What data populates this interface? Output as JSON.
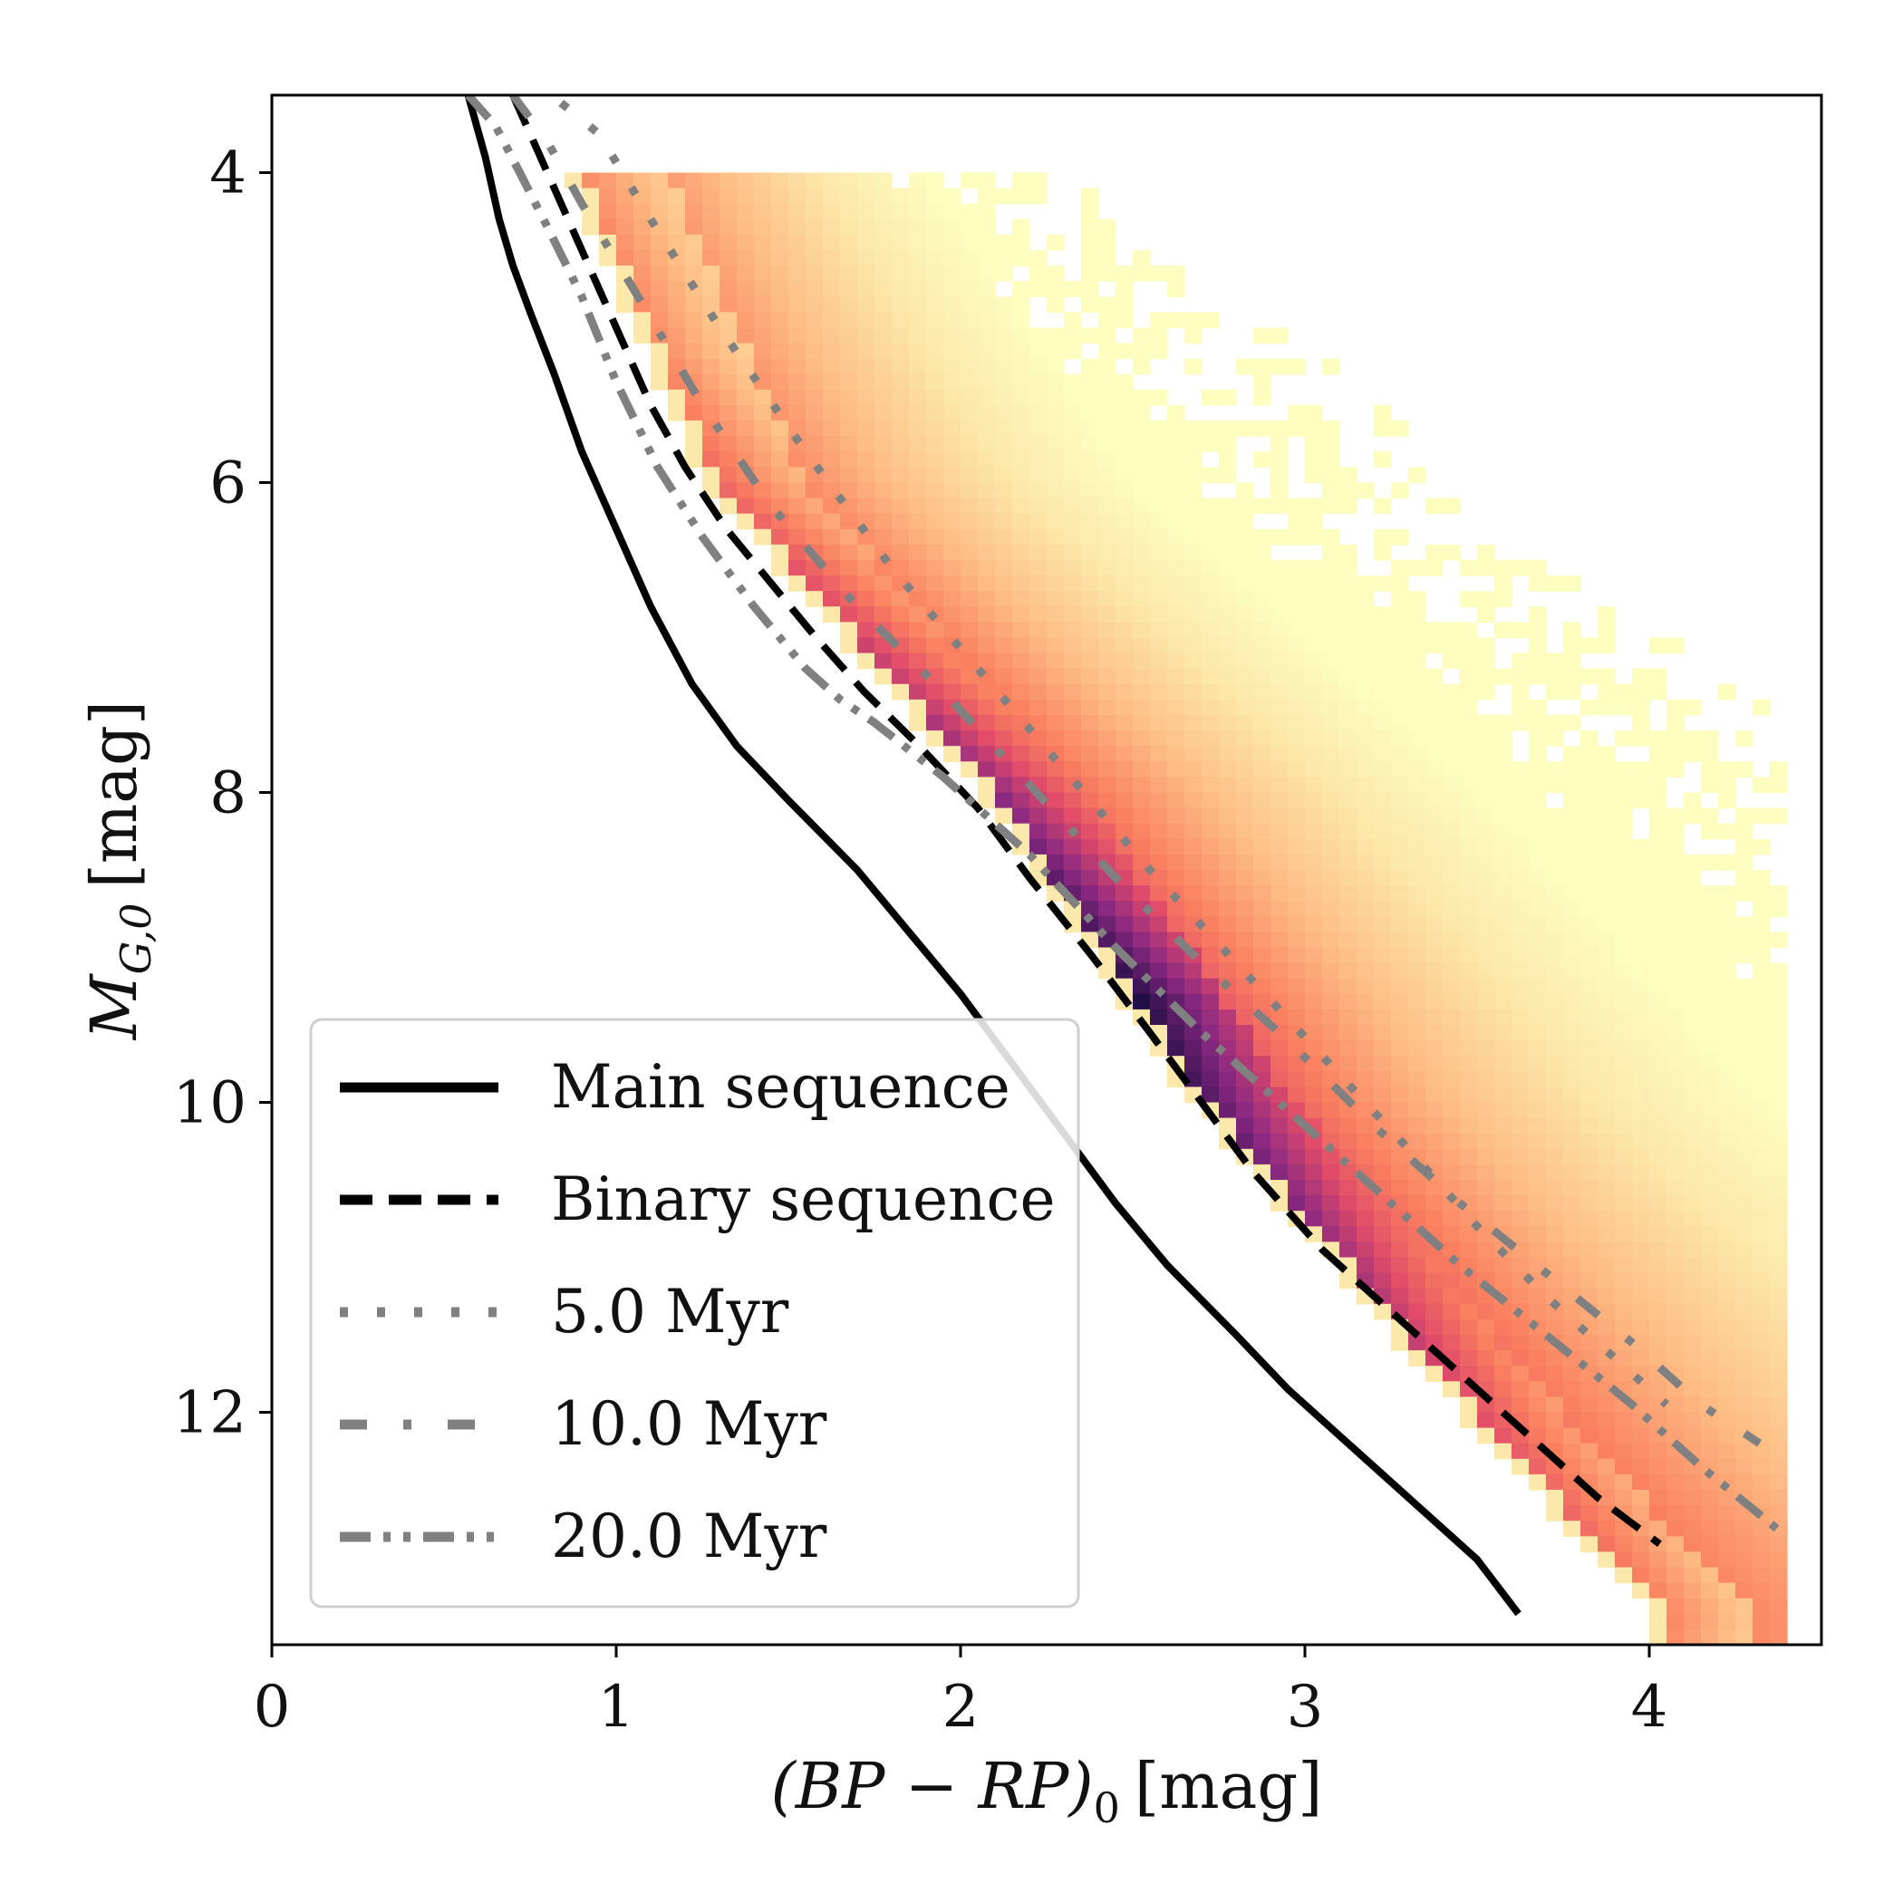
{
  "chart_data": {
    "type": "heatmap",
    "title": "",
    "xlabel": "(BP − RP)₀ [mag]",
    "ylabel": "M_G,0 [mag]",
    "xlabel_parts": {
      "main": "(BP − RP)",
      "sub": "0",
      "unit": "[mag]"
    },
    "ylabel_parts": {
      "main": "M",
      "sub": "G,0",
      "unit": "[mag]"
    },
    "xlim": [
      0,
      4.5
    ],
    "ylim": [
      13.5,
      3.5
    ],
    "y_inverted": true,
    "xticks": [
      0,
      1,
      2,
      3,
      4
    ],
    "xtick_labels": [
      "0",
      "1",
      "2",
      "3",
      "4"
    ],
    "yticks": [
      4,
      6,
      8,
      10,
      12
    ],
    "ytick_labels": [
      "4",
      "6",
      "8",
      "10",
      "12"
    ],
    "grid": false,
    "colormap": "magma_r",
    "colors": {
      "density_high": "#1b0c41",
      "density_mid": "#e8525e",
      "density_low": "#fcefb1",
      "main_sequence": "#000000",
      "binary_sequence": "#000000",
      "isochrones": "#808080"
    },
    "legend": {
      "placement": "lower-left",
      "entries": [
        "Main sequence",
        "Binary sequence",
        "5.0 Myr",
        "10.0 Myr",
        "20.0 Myr"
      ]
    },
    "heatmap": {
      "description_free": true,
      "color_range": [
        0.85,
        4.35
      ],
      "magnitude_range": [
        4.0,
        13.4
      ],
      "ridge_color_by_mag": [
        [
          4.0,
          0.9
        ],
        [
          6.0,
          1.3
        ],
        [
          8.0,
          2.1
        ],
        [
          10.0,
          2.72
        ],
        [
          12.0,
          3.5
        ],
        [
          13.3,
          4.05
        ]
      ]
    },
    "series": [
      {
        "name": "Main sequence",
        "style": "solid",
        "x": [
          0.57,
          0.62,
          0.66,
          0.7,
          0.75,
          0.82,
          0.9,
          1.0,
          1.1,
          1.22,
          1.35,
          1.5,
          1.7,
          1.85,
          2.0,
          2.15,
          2.3,
          2.45,
          2.6,
          2.8,
          2.95,
          3.1,
          3.3,
          3.5,
          3.62
        ],
        "y": [
          3.5,
          3.9,
          4.3,
          4.6,
          4.9,
          5.3,
          5.8,
          6.3,
          6.8,
          7.3,
          7.7,
          8.05,
          8.5,
          8.9,
          9.3,
          9.75,
          10.2,
          10.65,
          11.05,
          11.5,
          11.85,
          12.15,
          12.55,
          12.95,
          13.3
        ]
      },
      {
        "name": "Binary sequence",
        "style": "dashed",
        "x": [
          0.7,
          0.76,
          0.82,
          0.88,
          0.95,
          1.02,
          1.1,
          1.2,
          1.32,
          1.45,
          1.58,
          1.72,
          1.88,
          2.05,
          2.2,
          2.38,
          2.55,
          2.7,
          2.85,
          3.05,
          3.25,
          3.45,
          3.65,
          3.85,
          4.03
        ],
        "y": [
          3.5,
          3.8,
          4.1,
          4.4,
          4.75,
          5.1,
          5.5,
          5.9,
          6.3,
          6.65,
          7.0,
          7.35,
          7.7,
          8.1,
          8.55,
          9.05,
          9.55,
          10.0,
          10.45,
          10.95,
          11.35,
          11.75,
          12.15,
          12.55,
          12.85
        ]
      },
      {
        "name": "5.0 Myr",
        "style": "dotted",
        "x": [
          0.84,
          0.95,
          1.1,
          1.3,
          1.55,
          1.8,
          2.05,
          2.3,
          2.55,
          2.8,
          3.05,
          3.3,
          3.5,
          3.7,
          3.9,
          4.05
        ],
        "y": [
          3.55,
          3.75,
          4.3,
          5.0,
          5.8,
          6.55,
          7.2,
          7.85,
          8.5,
          9.1,
          9.7,
          10.3,
          10.8,
          11.25,
          11.65,
          11.95
        ]
      },
      {
        "name": "10.0 Myr",
        "style": "dashdot-sparse",
        "x": [
          0.7,
          0.8,
          0.9,
          1.05,
          1.25,
          1.45,
          1.7,
          1.95,
          2.2,
          2.45,
          2.7,
          2.95,
          3.2,
          3.45,
          3.7,
          3.95,
          4.15,
          4.32
        ],
        "y": [
          3.5,
          3.8,
          4.2,
          4.75,
          5.5,
          6.15,
          6.8,
          7.35,
          7.95,
          8.55,
          9.1,
          9.6,
          10.15,
          10.65,
          11.1,
          11.55,
          11.95,
          12.2
        ]
      },
      {
        "name": "20.0 Myr",
        "style": "dashdotdot",
        "x": [
          0.57,
          0.65,
          0.72,
          0.8,
          0.9,
          1.0,
          1.12,
          1.25,
          1.4,
          1.55,
          1.65,
          1.75,
          1.95,
          2.2,
          2.45,
          2.7,
          2.95,
          3.2,
          3.45,
          3.7,
          3.95,
          4.15,
          4.37
        ],
        "y": [
          3.5,
          3.7,
          4.0,
          4.35,
          4.8,
          5.35,
          5.9,
          6.35,
          6.8,
          7.2,
          7.4,
          7.55,
          7.9,
          8.4,
          9.0,
          9.55,
          10.05,
          10.55,
          11.05,
          11.5,
          11.95,
          12.35,
          12.75
        ]
      }
    ]
  }
}
